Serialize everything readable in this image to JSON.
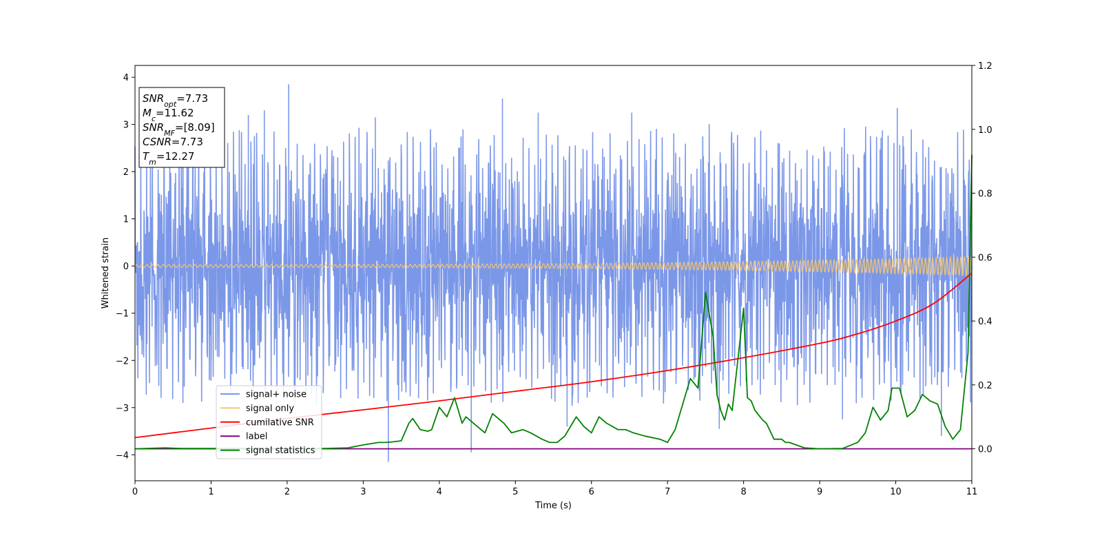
{
  "chart_data": {
    "type": "line",
    "xlabel": "Time (s)",
    "ylabel": "Whitened strain",
    "xlim": [
      0,
      11
    ],
    "ylim": [
      -4.55,
      4.25
    ],
    "y2lim": [
      -0.1,
      1.2
    ],
    "x_ticks": [
      "0",
      "1",
      "2",
      "3",
      "4",
      "5",
      "6",
      "7",
      "8",
      "9",
      "10",
      "11"
    ],
    "y_ticks": [
      "4",
      "3",
      "2",
      "1",
      "0",
      "−1",
      "−2",
      "−3",
      "−4"
    ],
    "y2_ticks": [
      "1.2",
      "1.0",
      "0.8",
      "0.6",
      "0.4",
      "0.2",
      "0.0"
    ],
    "grid": false,
    "legend_position": "lower-left",
    "colors": {
      "signal_noise": "#7b97e8",
      "signal_only": "#f5c56e",
      "cumulative_snr": "#ff0000",
      "label": "#800080",
      "signal_statistics": "#008000"
    },
    "series": [
      {
        "name": "signal+ noise",
        "axis": "left",
        "description_range": [
          -4.2,
          3.85
        ],
        "spikes": [
          [
            2.02,
            3.85
          ],
          [
            1.7,
            3.3
          ],
          [
            4.83,
            3.55
          ],
          [
            10.02,
            3.35
          ],
          [
            1.49,
            3.2
          ],
          [
            3.16,
            3.15
          ],
          [
            6.53,
            3.25
          ],
          [
            5.3,
            3.25
          ],
          [
            3.33,
            -4.15
          ],
          [
            4.42,
            -3.95
          ],
          [
            0.63,
            -2.9
          ],
          [
            10.6,
            -3.6
          ],
          [
            7.68,
            -3.45
          ],
          [
            9.3,
            -3.25
          ],
          [
            5.68,
            -3.4
          ]
        ]
      },
      {
        "name": "signal only",
        "axis": "left",
        "amplitude_start": 0.03,
        "amplitude_end": 0.2
      },
      {
        "name": "cumilative SNR",
        "axis": "right",
        "x": [
          0,
          1,
          2,
          3,
          4,
          5,
          6,
          7,
          8,
          9,
          9.5,
          10,
          10.5,
          11
        ],
        "y": [
          0.035,
          0.065,
          0.095,
          0.122,
          0.15,
          0.18,
          0.21,
          0.245,
          0.285,
          0.33,
          0.36,
          0.4,
          0.455,
          0.55
        ]
      },
      {
        "name": "label",
        "axis": "right",
        "x": [
          0,
          11
        ],
        "y": [
          0.0,
          0.0
        ]
      },
      {
        "name": "signal statistics",
        "axis": "right",
        "x": [
          0,
          0.4,
          0.6,
          1.0,
          2.5,
          2.8,
          3.0,
          3.2,
          3.3,
          3.4,
          3.5,
          3.6,
          3.65,
          3.75,
          3.85,
          3.9,
          4.0,
          4.1,
          4.2,
          4.3,
          4.35,
          4.45,
          4.6,
          4.7,
          4.85,
          4.95,
          5.1,
          5.2,
          5.35,
          5.45,
          5.55,
          5.65,
          5.8,
          5.9,
          6.0,
          6.1,
          6.2,
          6.35,
          6.45,
          6.55,
          6.7,
          6.9,
          7.0,
          7.1,
          7.2,
          7.3,
          7.4,
          7.5,
          7.6,
          7.65,
          7.7,
          7.75,
          7.8,
          7.85,
          8.0,
          8.05,
          8.1,
          8.15,
          8.25,
          8.3,
          8.4,
          8.5,
          8.55,
          8.6,
          8.8,
          9.0,
          9.3,
          9.5,
          9.6,
          9.7,
          9.8,
          9.9,
          9.95,
          10.05,
          10.15,
          10.25,
          10.35,
          10.45,
          10.55,
          10.65,
          10.75,
          10.85,
          10.95,
          11.0
        ],
        "y": [
          0.0,
          0.003,
          0.001,
          0.001,
          0.001,
          0.003,
          0.012,
          0.02,
          0.02,
          0.022,
          0.025,
          0.08,
          0.095,
          0.06,
          0.055,
          0.06,
          0.13,
          0.1,
          0.16,
          0.08,
          0.1,
          0.08,
          0.05,
          0.11,
          0.08,
          0.05,
          0.06,
          0.05,
          0.03,
          0.02,
          0.02,
          0.04,
          0.1,
          0.07,
          0.05,
          0.1,
          0.08,
          0.06,
          0.06,
          0.05,
          0.04,
          0.03,
          0.02,
          0.06,
          0.14,
          0.22,
          0.19,
          0.49,
          0.35,
          0.17,
          0.12,
          0.09,
          0.14,
          0.12,
          0.44,
          0.16,
          0.15,
          0.12,
          0.09,
          0.08,
          0.03,
          0.03,
          0.02,
          0.02,
          0.003,
          0.0,
          0.001,
          0.02,
          0.05,
          0.13,
          0.09,
          0.12,
          0.19,
          0.19,
          0.1,
          0.12,
          0.17,
          0.15,
          0.14,
          0.07,
          0.03,
          0.06,
          0.3,
          0.92
        ]
      }
    ],
    "legend": [
      "signal+ noise",
      "signal only",
      "cumilative SNR",
      "label",
      "signal statistics"
    ],
    "annotation": {
      "lines": [
        {
          "main": "SNR",
          "sub": "opt",
          "value": "=7.73"
        },
        {
          "main": "M",
          "sub": "c",
          "value": "=11.62"
        },
        {
          "main": "SNR",
          "sub": "MF",
          "value": "=[8.09]"
        },
        {
          "main": "CSNR",
          "sub": "",
          "value": "=7.73"
        },
        {
          "main": "T",
          "sub": "m",
          "value": "=12.27"
        }
      ]
    }
  }
}
